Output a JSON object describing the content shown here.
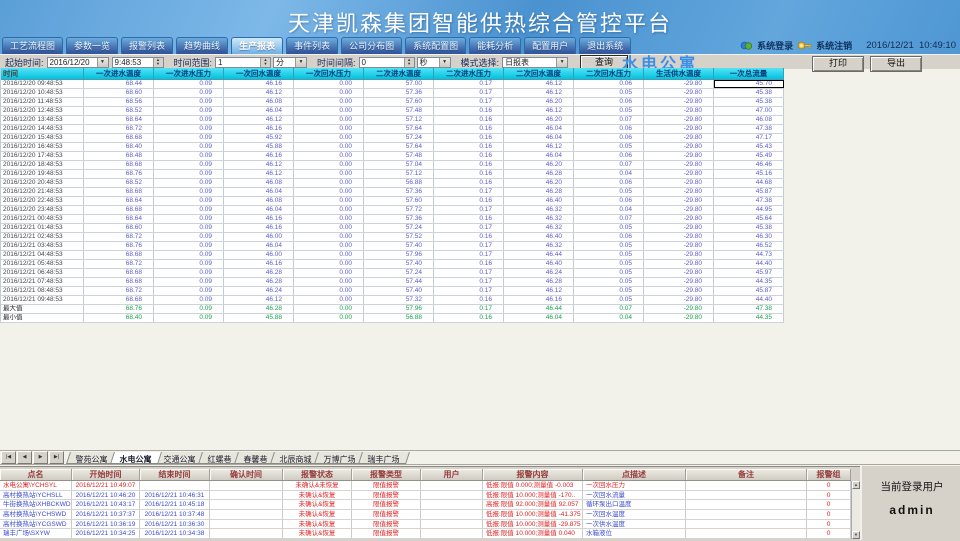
{
  "window": {
    "title": "天津凯森集团智能供热综合管控平台"
  },
  "menu_tabs": [
    {
      "label": "工艺流程图",
      "active": false
    },
    {
      "label": "参数一览",
      "active": false
    },
    {
      "label": "报警列表",
      "active": false
    },
    {
      "label": "趋势曲线",
      "active": false
    },
    {
      "label": "生产报表",
      "active": true
    },
    {
      "label": "事件列表",
      "active": false
    },
    {
      "label": "公司分布图",
      "active": false
    },
    {
      "label": "系统配置图",
      "active": false
    },
    {
      "label": "能耗分析",
      "active": false
    },
    {
      "label": "配置用户",
      "active": false
    },
    {
      "label": "退出系统",
      "active": false
    }
  ],
  "session": {
    "login": "系统登录",
    "logout": "系统注销",
    "datetime": "2016/12/21  10:49:10"
  },
  "toolbar": {
    "start_time_label": "起始时间:",
    "start_date": "2016/12/20",
    "start_clock": "9:48:53",
    "range_label": "时间范围:",
    "range_value": "1",
    "range_unit": "分",
    "interval_label": "时间间隔:",
    "interval_value": "0",
    "interval_unit": "秒",
    "mode_label": "模式选择:",
    "mode_value": "日报表",
    "query_label": "查询",
    "station_title": "水电公寓",
    "print_label": "打印",
    "export_label": "导出"
  },
  "report": {
    "columns": [
      "时间",
      "一次进水温度",
      "一次进水压力",
      "一次回水温度",
      "一次回水压力",
      "二次进水温度",
      "二次进水压力",
      "二次回水温度",
      "二次回水压力",
      "生活供水温度",
      "一次总流量"
    ],
    "rows": [
      [
        "2016/12/20 09:48:53",
        "68.44",
        "0.09",
        "46.16",
        "0.00",
        "57.00",
        "0.17",
        "46.12",
        "0.06",
        "-29.80",
        "45.70"
      ],
      [
        "2016/12/20 10:48:53",
        "68.60",
        "0.09",
        "46.12",
        "0.00",
        "57.36",
        "0.17",
        "46.12",
        "0.05",
        "-29.80",
        "45.38"
      ],
      [
        "2016/12/20 11:48:53",
        "68.56",
        "0.09",
        "46.08",
        "0.00",
        "57.60",
        "0.17",
        "46.20",
        "0.06",
        "-29.80",
        "45.38"
      ],
      [
        "2016/12/20 12:48:53",
        "68.52",
        "0.09",
        "46.04",
        "0.00",
        "57.48",
        "0.16",
        "46.12",
        "0.05",
        "-29.80",
        "47.00"
      ],
      [
        "2016/12/20 13:48:53",
        "68.64",
        "0.09",
        "46.12",
        "0.00",
        "57.12",
        "0.16",
        "46.20",
        "0.07",
        "-29.80",
        "46.08"
      ],
      [
        "2016/12/20 14:48:53",
        "68.72",
        "0.09",
        "46.16",
        "0.00",
        "57.64",
        "0.16",
        "46.04",
        "0.06",
        "-29.80",
        "47.38"
      ],
      [
        "2016/12/20 15:48:53",
        "68.68",
        "0.09",
        "45.92",
        "0.00",
        "57.24",
        "0.16",
        "46.04",
        "0.06",
        "-29.80",
        "47.17"
      ],
      [
        "2016/12/20 16:48:53",
        "68.40",
        "0.09",
        "45.88",
        "0.00",
        "57.64",
        "0.16",
        "46.12",
        "0.05",
        "-29.80",
        "45.43"
      ],
      [
        "2016/12/20 17:48:53",
        "68.48",
        "0.09",
        "46.16",
        "0.00",
        "57.48",
        "0.16",
        "46.04",
        "0.06",
        "-29.80",
        "45.49"
      ],
      [
        "2016/12/20 18:48:53",
        "68.68",
        "0.09",
        "46.12",
        "0.00",
        "57.04",
        "0.16",
        "46.20",
        "0.07",
        "-29.80",
        "46.46"
      ],
      [
        "2016/12/20 19:48:53",
        "68.76",
        "0.09",
        "46.12",
        "0.00",
        "57.12",
        "0.16",
        "46.28",
        "0.04",
        "-29.80",
        "45.16"
      ],
      [
        "2016/12/20 20:48:53",
        "68.52",
        "0.09",
        "46.08",
        "0.00",
        "56.88",
        "0.16",
        "46.20",
        "0.06",
        "-29.80",
        "44.68"
      ],
      [
        "2016/12/20 21:48:53",
        "68.68",
        "0.09",
        "46.04",
        "0.00",
        "57.36",
        "0.17",
        "46.28",
        "0.05",
        "-29.80",
        "45.87"
      ],
      [
        "2016/12/20 22:48:53",
        "68.64",
        "0.09",
        "46.08",
        "0.00",
        "57.60",
        "0.16",
        "46.40",
        "0.06",
        "-29.80",
        "47.38"
      ],
      [
        "2016/12/20 23:48:53",
        "68.68",
        "0.09",
        "46.04",
        "0.00",
        "57.72",
        "0.17",
        "46.32",
        "0.04",
        "-29.80",
        "44.95"
      ],
      [
        "2016/12/21 00:48:53",
        "68.64",
        "0.09",
        "46.16",
        "0.00",
        "57.36",
        "0.16",
        "46.32",
        "0.07",
        "-29.80",
        "45.64"
      ],
      [
        "2016/12/21 01:48:53",
        "68.60",
        "0.09",
        "46.16",
        "0.00",
        "57.24",
        "0.17",
        "46.32",
        "0.05",
        "-29.80",
        "45.38"
      ],
      [
        "2016/12/21 02:48:53",
        "68.72",
        "0.09",
        "46.00",
        "0.00",
        "57.52",
        "0.16",
        "46.40",
        "0.06",
        "-29.80",
        "46.30"
      ],
      [
        "2016/12/21 03:48:53",
        "68.76",
        "0.09",
        "46.04",
        "0.00",
        "57.40",
        "0.17",
        "46.32",
        "0.05",
        "-29.80",
        "46.52"
      ],
      [
        "2016/12/21 04:48:53",
        "68.68",
        "0.09",
        "46.00",
        "0.00",
        "57.96",
        "0.17",
        "46.44",
        "0.05",
        "-29.80",
        "44.73"
      ],
      [
        "2016/12/21 05:48:53",
        "68.72",
        "0.09",
        "46.16",
        "0.00",
        "57.40",
        "0.16",
        "46.40",
        "0.05",
        "-29.80",
        "44.40"
      ],
      [
        "2016/12/21 06:48:53",
        "68.68",
        "0.09",
        "46.28",
        "0.00",
        "57.24",
        "0.17",
        "46.24",
        "0.05",
        "-29.80",
        "45.97"
      ],
      [
        "2016/12/21 07:48:53",
        "68.68",
        "0.09",
        "46.28",
        "0.00",
        "57.44",
        "0.17",
        "46.28",
        "0.05",
        "-29.80",
        "44.35"
      ],
      [
        "2016/12/21 08:48:53",
        "68.72",
        "0.09",
        "46.24",
        "0.00",
        "57.40",
        "0.17",
        "46.12",
        "0.05",
        "-29.80",
        "45.87"
      ],
      [
        "2016/12/21 09:48:53",
        "68.68",
        "0.09",
        "46.12",
        "0.00",
        "57.32",
        "0.16",
        "46.16",
        "0.05",
        "-29.80",
        "44.40"
      ]
    ],
    "summary_rows": [
      [
        "最大值",
        "68.76",
        "0.09",
        "46.28",
        "0.00",
        "57.96",
        "0.17",
        "46.44",
        "0.07",
        "-29.80",
        "47.38"
      ],
      [
        "最小值",
        "68.40",
        "0.09",
        "45.88",
        "0.00",
        "56.88",
        "0.16",
        "46.04",
        "0.04",
        "-29.80",
        "44.35"
      ]
    ]
  },
  "sheet_bar": {
    "nav": [
      "|◀",
      "◀",
      "▶",
      "▶|"
    ],
    "tabs": [
      {
        "label": "警苑公寓",
        "active": false
      },
      {
        "label": "水电公寓",
        "active": true
      },
      {
        "label": "交通公寓",
        "active": false
      },
      {
        "label": "红螺巷",
        "active": false
      },
      {
        "label": "春馨巷",
        "active": false
      },
      {
        "label": "北辰商城",
        "active": false
      },
      {
        "label": "万博广场",
        "active": false
      },
      {
        "label": "瑞丰广场",
        "active": false
      }
    ]
  },
  "alarms": {
    "columns": [
      "点名",
      "开始时间",
      "结束时间",
      "确认时间",
      "报警状态",
      "报警类型",
      "用户",
      "报警内容",
      "点描述",
      "备注",
      "报警组"
    ],
    "rows": [
      [
        "水电公寓\\YCHSYL",
        "2016/12/21 10:49:07",
        "",
        "",
        "未确认&未恢复",
        "限值报警",
        "",
        "低报:限值 0.000;测量值 -0.003",
        "一次回水压力",
        "",
        "0"
      ],
      [
        "高村换热站\\YCHSLL",
        "2016/12/21 10:46:20",
        "2016/12/21 10:46:31",
        "",
        "未确认&恢复",
        "限值报警",
        "",
        "低报:限值 10.000;测量值 -170..",
        "一次回水流量",
        "",
        "0"
      ],
      [
        "牛街换热站\\XHBCKWD",
        "2016/12/21 10:43:17",
        "2016/12/21 10:45:18",
        "",
        "未确认&恢复",
        "限值报警",
        "",
        "高报:限值 92.000;测量值 92.057",
        "循环泵出口温度",
        "",
        "0"
      ],
      [
        "高村换热站\\YCHSWD",
        "2016/12/21 10:37:37",
        "2016/12/21 10:37:48",
        "",
        "未确认&恢复",
        "限值报警",
        "",
        "低报:限值 10.000;测量值 -41.375",
        "一次回水温度",
        "",
        "0"
      ],
      [
        "高村换热站\\YCGSWD",
        "2016/12/21 10:36:19",
        "2016/12/21 10:36:30",
        "",
        "未确认&恢复",
        "限值报警",
        "",
        "低报:限值 10.000;测量值 -29.875",
        "一次供水温度",
        "",
        "0"
      ],
      [
        "瑞丰广场\\SXYW",
        "2016/12/21 10:34:25",
        "2016/12/21 10:34:38",
        "",
        "未确认&恢复",
        "限值报警",
        "",
        "低报:限值 10.000;测量值 0.040",
        "水箱液位",
        "",
        "0"
      ]
    ]
  },
  "user_panel": {
    "label": "当前登录用户",
    "username": "admin"
  },
  "colors": {
    "header_cyan": "#00c2de",
    "value_blue": "#5a5ace",
    "summary_green": "#18a050",
    "alarm_red": "#e02020",
    "alarm_blue": "#3a4ad0",
    "station_blue": "#3b8fe8"
  }
}
